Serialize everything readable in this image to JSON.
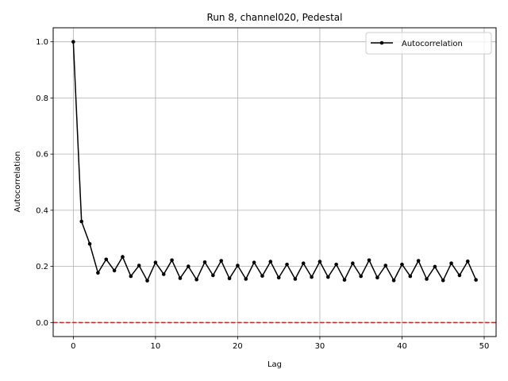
{
  "chart_data": {
    "type": "line",
    "title": "Run 8, channel020, Pedestal",
    "xlabel": "Lag",
    "ylabel": "Autocorrelation",
    "xlim": [
      -2.45,
      51.45
    ],
    "ylim": [
      -0.05,
      1.05
    ],
    "xticks": [
      0,
      10,
      20,
      30,
      40,
      50
    ],
    "yticks": [
      0.0,
      0.2,
      0.4,
      0.6,
      0.8,
      1.0
    ],
    "xtick_labels": [
      "0",
      "10",
      "20",
      "30",
      "40",
      "50"
    ],
    "ytick_labels": [
      "0.0",
      "0.2",
      "0.4",
      "0.6",
      "0.8",
      "1.0"
    ],
    "grid": true,
    "legend_position": "top-right",
    "reference_line": {
      "y": 0.0,
      "color": "#d62728",
      "style": "dashed"
    },
    "series": [
      {
        "name": "Autocorrelation",
        "color": "#000000",
        "marker": "circle",
        "x": [
          0,
          1,
          2,
          3,
          4,
          5,
          6,
          7,
          8,
          9,
          10,
          11,
          12,
          13,
          14,
          15,
          16,
          17,
          18,
          19,
          20,
          21,
          22,
          23,
          24,
          25,
          26,
          27,
          28,
          29,
          30,
          31,
          32,
          33,
          34,
          35,
          36,
          37,
          38,
          39,
          40,
          41,
          42,
          43,
          44,
          45,
          46,
          47,
          48,
          49
        ],
        "y": [
          1.0,
          0.36,
          0.28,
          0.177,
          0.225,
          0.185,
          0.234,
          0.165,
          0.203,
          0.149,
          0.214,
          0.172,
          0.222,
          0.158,
          0.2,
          0.153,
          0.215,
          0.168,
          0.22,
          0.157,
          0.203,
          0.155,
          0.214,
          0.166,
          0.217,
          0.16,
          0.207,
          0.155,
          0.211,
          0.162,
          0.217,
          0.162,
          0.207,
          0.152,
          0.211,
          0.165,
          0.222,
          0.16,
          0.203,
          0.15,
          0.207,
          0.165,
          0.22,
          0.155,
          0.199,
          0.15,
          0.211,
          0.168,
          0.218,
          0.152
        ]
      }
    ]
  }
}
